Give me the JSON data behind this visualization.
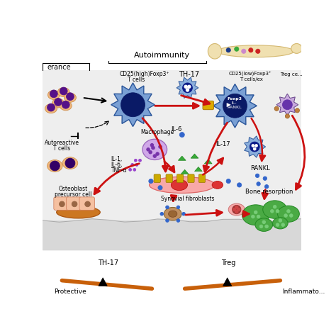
{
  "bg_color": "#ffffff",
  "label_autoimmunity": "Autoimmunity",
  "label_tolerance": "erance",
  "label_cd25high": "CD25(high)Foxp3⁺",
  "label_tcells": "T cells",
  "label_th17": "TH-17",
  "label_cd25low": "CD25(low)Foxp3⁺",
  "label_tcells_ex": "T cells/ex",
  "label_treg_cells": "Treg ce...",
  "label_foxp3": "Foxp3",
  "label_il": "IL-",
  "label_rankl_top": "RANKL",
  "label_macrophage": "Macrophage",
  "label_il6_mid": "IL-6",
  "label_il17": "IL-17",
  "label_il1": "IL-1,",
  "label_il6": "IL-6,",
  "label_tnfa": "TNF-α",
  "label_autoreactive": "Autoreactive",
  "label_tcells2": "T cells",
  "label_osteoblast": "Osteoblast",
  "label_precursor": "precursor cell",
  "label_synovial": "Synovial fibroblasts",
  "label_rankl_mid": "RANKL",
  "label_bone": "Bone resorption",
  "label_th17_bottom": "TH-17",
  "label_protective": "Protective",
  "label_treg_bottom": "Treg",
  "label_inflammatory": "Inflammato...",
  "orange_color": "#c8600a",
  "dark_blue": "#1a3a8a",
  "light_blue_cell": "#7aa0d4",
  "mid_blue": "#3a6abf",
  "purple_cell": "#b088cc",
  "peach_cell": "#f0b87a",
  "red_arrow": "#cc1111",
  "green_tri": "#3aaa3a",
  "pink_fibro": "#f09090",
  "brown_cell": "#b07840",
  "green_osteo": "#4aaa44",
  "gray_floor": "#c0c0c0",
  "light_gray_bg": "#eeeeee"
}
